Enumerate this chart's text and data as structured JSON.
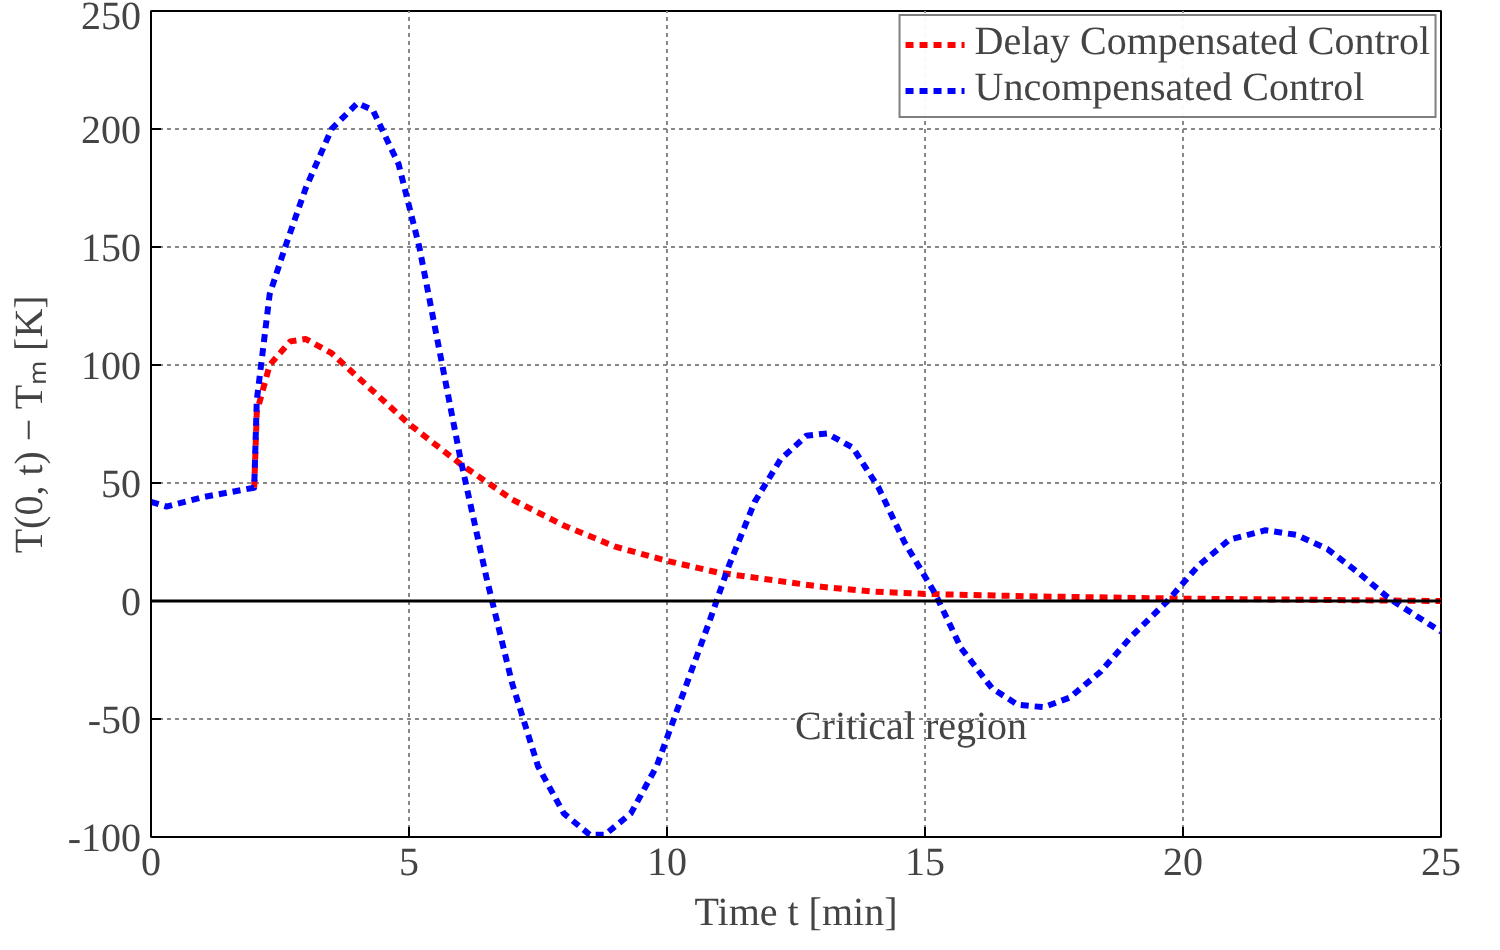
{
  "chart_data": {
    "type": "line",
    "xlabel": "Time t [min]",
    "ylabel": "T(0, t) − Tₘ [K]",
    "xlim": [
      0,
      25
    ],
    "xticks": [
      0,
      5,
      10,
      15,
      20,
      25
    ],
    "ylim": [
      -100,
      250
    ],
    "yticks": [
      -100,
      -50,
      0,
      50,
      100,
      150,
      200,
      250
    ],
    "grid": true,
    "legend": "top right",
    "line_style": "dashed",
    "ref_lines": [
      {
        "axis": "y",
        "value": 0,
        "color": "#000000",
        "line_style": "solid"
      }
    ],
    "annotations": [
      "Critical region"
    ],
    "series": [
      {
        "name": "Delay Compensated Control",
        "color": "#ff0000",
        "x": [
          2,
          2.05,
          2.3,
          2.7,
          3,
          3.5,
          4,
          5,
          6,
          7,
          8,
          9,
          10,
          11,
          12,
          13,
          14,
          15,
          17,
          20,
          25
        ],
        "values": [
          48,
          80,
          100,
          110,
          111,
          105,
          95,
          75,
          58,
          43,
          32,
          23,
          17,
          12,
          9,
          6,
          4,
          3,
          2,
          1,
          0
        ]
      },
      {
        "name": "Uncompensated Control",
        "color": "#0000ff",
        "x": [
          0,
          0.3,
          1,
          2,
          2.05,
          2.3,
          2.6,
          3,
          3.5,
          4,
          4.3,
          4.8,
          5.2,
          5.6,
          6,
          6.5,
          7,
          7.5,
          8,
          8.5,
          8.8,
          9.3,
          9.8,
          10.3,
          10.8,
          11.2,
          11.7,
          12.2,
          12.7,
          13.1,
          13.6,
          14.1,
          14.6,
          15.2,
          15.7,
          16.3,
          16.8,
          17.3,
          17.8,
          18.4,
          19,
          19.7,
          20.3,
          20.9,
          21.6,
          22.2,
          22.8,
          23.4,
          24,
          24.5,
          25
        ],
        "values": [
          42,
          40,
          44,
          48,
          85,
          130,
          150,
          175,
          200,
          211,
          208,
          185,
          150,
          105,
          60,
          10,
          -35,
          -70,
          -90,
          -99,
          -99,
          -90,
          -70,
          -40,
          -10,
          15,
          42,
          60,
          70,
          71,
          65,
          48,
          25,
          3,
          -20,
          -37,
          -44,
          -45,
          -41,
          -30,
          -15,
          0,
          15,
          26,
          30,
          28,
          22,
          12,
          1,
          -6,
          -13
        ]
      }
    ]
  }
}
